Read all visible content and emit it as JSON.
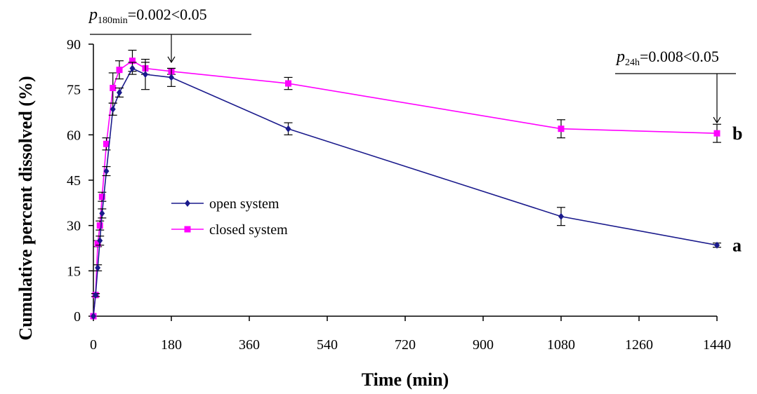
{
  "chart_data": {
    "type": "line",
    "title": "",
    "xlabel": "Time (min)",
    "ylabel": "Cumulative percent dissolved (%)",
    "xlim": [
      0,
      1440
    ],
    "ylim": [
      0,
      90
    ],
    "xticks": [
      0,
      180,
      360,
      540,
      720,
      900,
      1080,
      1260,
      1440
    ],
    "yticks": [
      0,
      15,
      30,
      45,
      60,
      75,
      90
    ],
    "grid": false,
    "legend_position": "center-left",
    "series": [
      {
        "name": "open system",
        "color": "#1a1a8c",
        "marker": "diamond",
        "end_label": "a",
        "x": [
          0,
          5,
          10,
          15,
          20,
          30,
          45,
          60,
          90,
          120,
          180,
          450,
          1080,
          1440
        ],
        "y": [
          0,
          7,
          16,
          25,
          34,
          48,
          68.5,
          74,
          82,
          80,
          79,
          62,
          33,
          23.5
        ],
        "err": [
          0,
          0.5,
          1,
          1.5,
          1.5,
          1.5,
          2,
          1.5,
          2,
          5,
          3,
          2,
          3,
          0.7
        ]
      },
      {
        "name": "closed system",
        "color": "#ff00ff",
        "marker": "square",
        "end_label": "b",
        "x": [
          0,
          5,
          10,
          15,
          20,
          30,
          45,
          60,
          90,
          120,
          180,
          450,
          1080,
          1440
        ],
        "y": [
          0,
          7,
          24,
          30,
          39.5,
          57,
          75.5,
          81.5,
          84.5,
          82,
          81,
          77,
          62,
          60.5
        ],
        "err": [
          0,
          0.5,
          1,
          1.5,
          1.5,
          2,
          5,
          3,
          3.5,
          2,
          1,
          2,
          3,
          3
        ]
      }
    ],
    "annotations": [
      {
        "p_label": "p",
        "subscript": "180min",
        "text": "=0.002<0.05",
        "arrow_x": 180,
        "arrow_y": 84,
        "bar_x": [
          0,
          360
        ]
      },
      {
        "p_label": "p",
        "subscript": "24h",
        "text": "=0.008<0.05",
        "arrow_x": 1440,
        "arrow_y": 64,
        "bar_x": [
          1200,
          1440
        ]
      }
    ]
  }
}
